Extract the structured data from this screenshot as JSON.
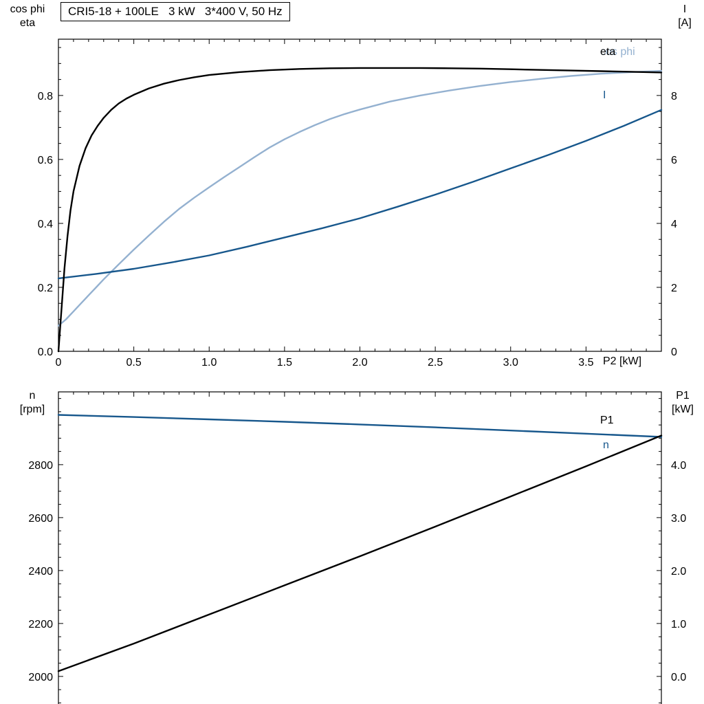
{
  "title_box": {
    "text": "CRI5-18 + 100LE   3 kW   3*400 V, 50 Hz"
  },
  "colors": {
    "curve_black": "#000000",
    "curve_light_blue": "#94b1d0",
    "curve_dark_blue": "#17578c",
    "frame": "#000000",
    "text": "#000000"
  },
  "chart_data": [
    {
      "id": "motor-top",
      "type": "line",
      "title": "CRI5-18 + 100LE   3 kW   3*400 V, 50 Hz",
      "xlabel": "P2 [kW]",
      "ylabel_left": [
        "cos phi",
        "eta"
      ],
      "ylabel_right": [
        "I",
        "[A]"
      ],
      "xlim": [
        0,
        4
      ],
      "ylim_left": [
        0,
        0.976
      ],
      "ylim_right": [
        0,
        9.76
      ],
      "grid": false,
      "legend_position": "inline-right",
      "xticks": {
        "values": [
          0,
          0.5,
          1,
          1.5,
          2,
          2.5,
          3,
          3.5
        ],
        "labels": [
          "0",
          "0.5",
          "1.0",
          "1.5",
          "2.0",
          "2.5",
          "3.0",
          "3.5"
        ]
      },
      "yticks_left": {
        "values": [
          0,
          0.2,
          0.4,
          0.6,
          0.8
        ],
        "labels": [
          "0.0",
          "0.2",
          "0.4",
          "0.6",
          "0.8"
        ]
      },
      "yticks_right": {
        "values": [
          0,
          2,
          4,
          6,
          8
        ],
        "labels": [
          "0",
          "2",
          "4",
          "6",
          "8"
        ]
      },
      "series": [
        {
          "name": "cos phi",
          "axis": "left",
          "color_key": "curve_light_blue",
          "x": [
            0,
            0.05,
            0.1,
            0.15,
            0.2,
            0.25,
            0.3,
            0.4,
            0.5,
            0.6,
            0.7,
            0.8,
            0.9,
            1.0,
            1.1,
            1.2,
            1.3,
            1.4,
            1.5,
            1.6,
            1.7,
            1.8,
            1.9,
            2.0,
            2.2,
            2.4,
            2.6,
            2.8,
            3.0,
            3.2,
            3.4,
            3.6,
            3.8,
            4.0
          ],
          "y": [
            0.08,
            0.1,
            0.125,
            0.15,
            0.175,
            0.2,
            0.225,
            0.272,
            0.318,
            0.362,
            0.405,
            0.445,
            0.48,
            0.513,
            0.545,
            0.576,
            0.607,
            0.637,
            0.663,
            0.686,
            0.707,
            0.726,
            0.742,
            0.756,
            0.781,
            0.8,
            0.816,
            0.83,
            0.842,
            0.852,
            0.861,
            0.868,
            0.873,
            0.877
          ]
        },
        {
          "name": "I",
          "axis": "right",
          "color_key": "curve_dark_blue",
          "x": [
            0,
            0.25,
            0.5,
            0.75,
            1.0,
            1.25,
            1.5,
            1.75,
            2.0,
            2.25,
            2.5,
            2.75,
            3.0,
            3.25,
            3.5,
            3.75,
            4.0
          ],
          "y": [
            2.28,
            2.42,
            2.58,
            2.78,
            3.0,
            3.27,
            3.56,
            3.85,
            4.16,
            4.52,
            4.9,
            5.3,
            5.72,
            6.14,
            6.58,
            7.05,
            7.55
          ]
        },
        {
          "name": "eta",
          "axis": "left",
          "color_key": "curve_black",
          "x": [
            0,
            0.02,
            0.04,
            0.06,
            0.08,
            0.1,
            0.14,
            0.18,
            0.22,
            0.26,
            0.3,
            0.35,
            0.4,
            0.45,
            0.5,
            0.6,
            0.7,
            0.8,
            0.9,
            1.0,
            1.2,
            1.4,
            1.6,
            1.8,
            2.0,
            2.2,
            2.4,
            2.6,
            2.8,
            3.0,
            3.2,
            3.4,
            3.6,
            3.8,
            4.0
          ],
          "y": [
            0,
            0.13,
            0.26,
            0.36,
            0.44,
            0.5,
            0.58,
            0.635,
            0.675,
            0.705,
            0.73,
            0.755,
            0.775,
            0.79,
            0.802,
            0.822,
            0.837,
            0.848,
            0.857,
            0.864,
            0.873,
            0.879,
            0.883,
            0.885,
            0.886,
            0.886,
            0.886,
            0.885,
            0.884,
            0.882,
            0.88,
            0.878,
            0.876,
            0.874,
            0.872
          ]
        }
      ]
    },
    {
      "id": "motor-bottom",
      "type": "line",
      "title": "",
      "xlabel": "",
      "ylabel_left": [
        "n",
        "[rpm]"
      ],
      "ylabel_right": [
        "P1",
        "[kW]"
      ],
      "xlim": [
        0,
        4
      ],
      "ylim_left": [
        1875,
        3075
      ],
      "ylim_right": [
        -0.625,
        5.375
      ],
      "grid": false,
      "legend_position": "inline-right",
      "xticks": {
        "values": [
          0,
          0.5,
          1,
          1.5,
          2,
          2.5,
          3,
          3.5
        ],
        "labels": []
      },
      "yticks_left": {
        "values": [
          2000,
          2200,
          2400,
          2600,
          2800
        ],
        "labels": [
          "2000",
          "2200",
          "2400",
          "2600",
          "2800"
        ]
      },
      "yticks_right": {
        "values": [
          0,
          1,
          2,
          3,
          4
        ],
        "labels": [
          "0.0",
          "1.0",
          "2.0",
          "3.0",
          "4.0"
        ]
      },
      "series": [
        {
          "name": "n",
          "axis": "left",
          "color_key": "curve_dark_blue",
          "x": [
            0,
            0.5,
            1.0,
            1.5,
            2.0,
            2.5,
            3.0,
            3.5,
            4.0
          ],
          "y": [
            2988,
            2980,
            2971,
            2962,
            2952,
            2941,
            2929,
            2917,
            2905
          ]
        },
        {
          "name": "P1",
          "axis": "right",
          "color_key": "curve_black",
          "x": [
            0,
            0.5,
            1.0,
            1.5,
            2.0,
            2.5,
            3.0,
            3.5,
            4.0
          ],
          "y": [
            0.1,
            0.62,
            1.17,
            1.72,
            2.27,
            2.83,
            3.4,
            3.97,
            4.55
          ]
        }
      ]
    }
  ]
}
